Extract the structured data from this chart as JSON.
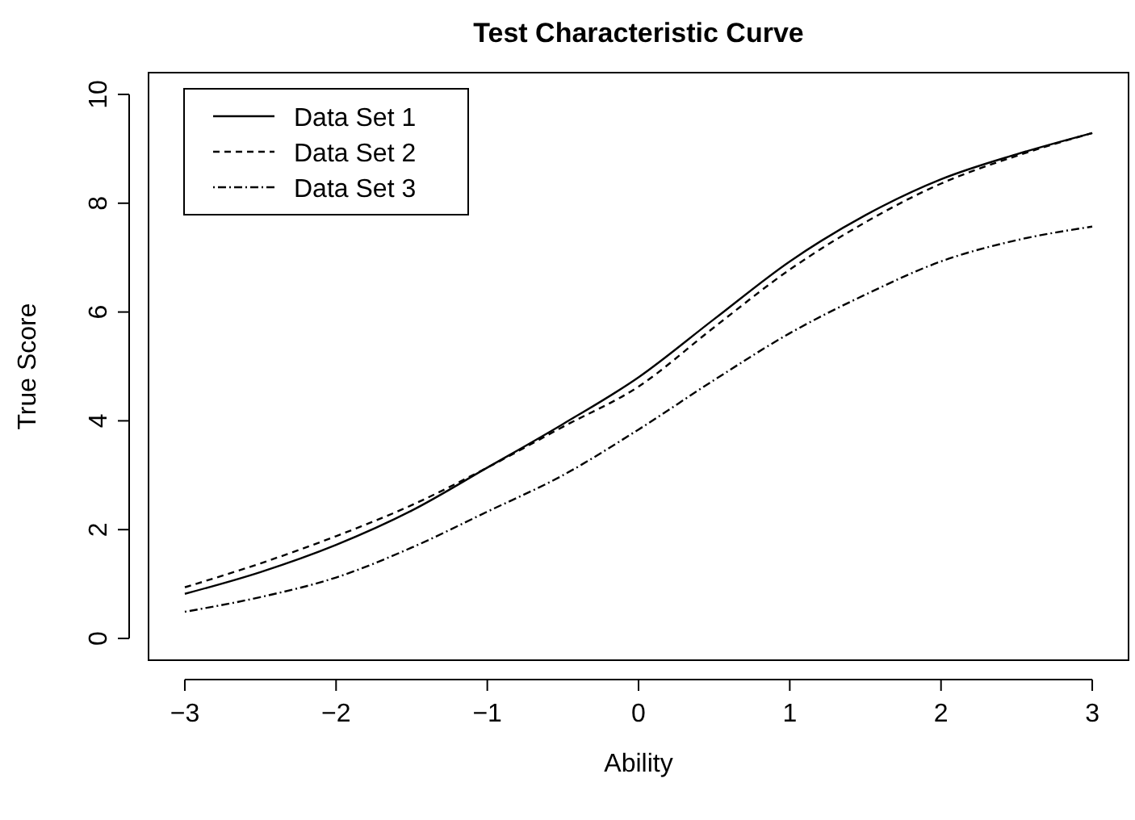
{
  "chart_data": {
    "type": "line",
    "title": "Test Characteristic Curve",
    "xlabel": "Ability",
    "ylabel": "True Score",
    "x": [
      -3,
      -2.5,
      -2,
      -1.5,
      -1,
      -0.5,
      0,
      0.5,
      1,
      1.5,
      2,
      2.5,
      3
    ],
    "series": [
      {
        "name": "Data Set 1",
        "color": "#000000",
        "line_style": "solid",
        "values": [
          0.82,
          1.22,
          1.72,
          2.35,
          3.14,
          3.94,
          4.8,
          5.87,
          6.93,
          7.78,
          8.44,
          8.9,
          9.29
        ]
      },
      {
        "name": "Data Set 2",
        "color": "#000000",
        "line_style": "dashed",
        "values": [
          0.94,
          1.38,
          1.88,
          2.45,
          3.14,
          3.89,
          4.63,
          5.72,
          6.78,
          7.65,
          8.36,
          8.87,
          9.29
        ]
      },
      {
        "name": "Data Set 3",
        "color": "#000000",
        "line_style": "dashdot",
        "values": [
          0.49,
          0.76,
          1.12,
          1.67,
          2.33,
          3.0,
          3.84,
          4.75,
          5.61,
          6.32,
          6.93,
          7.32,
          7.57
        ]
      }
    ],
    "xlim": [
      -3.24,
      3.24
    ],
    "ylim": [
      -0.4,
      10.4
    ],
    "xticks": [
      -3,
      -2,
      -1,
      0,
      1,
      2,
      3
    ],
    "yticks": [
      0,
      2,
      4,
      6,
      8,
      10
    ],
    "grid": false,
    "legend": "top left",
    "marker": "none"
  }
}
